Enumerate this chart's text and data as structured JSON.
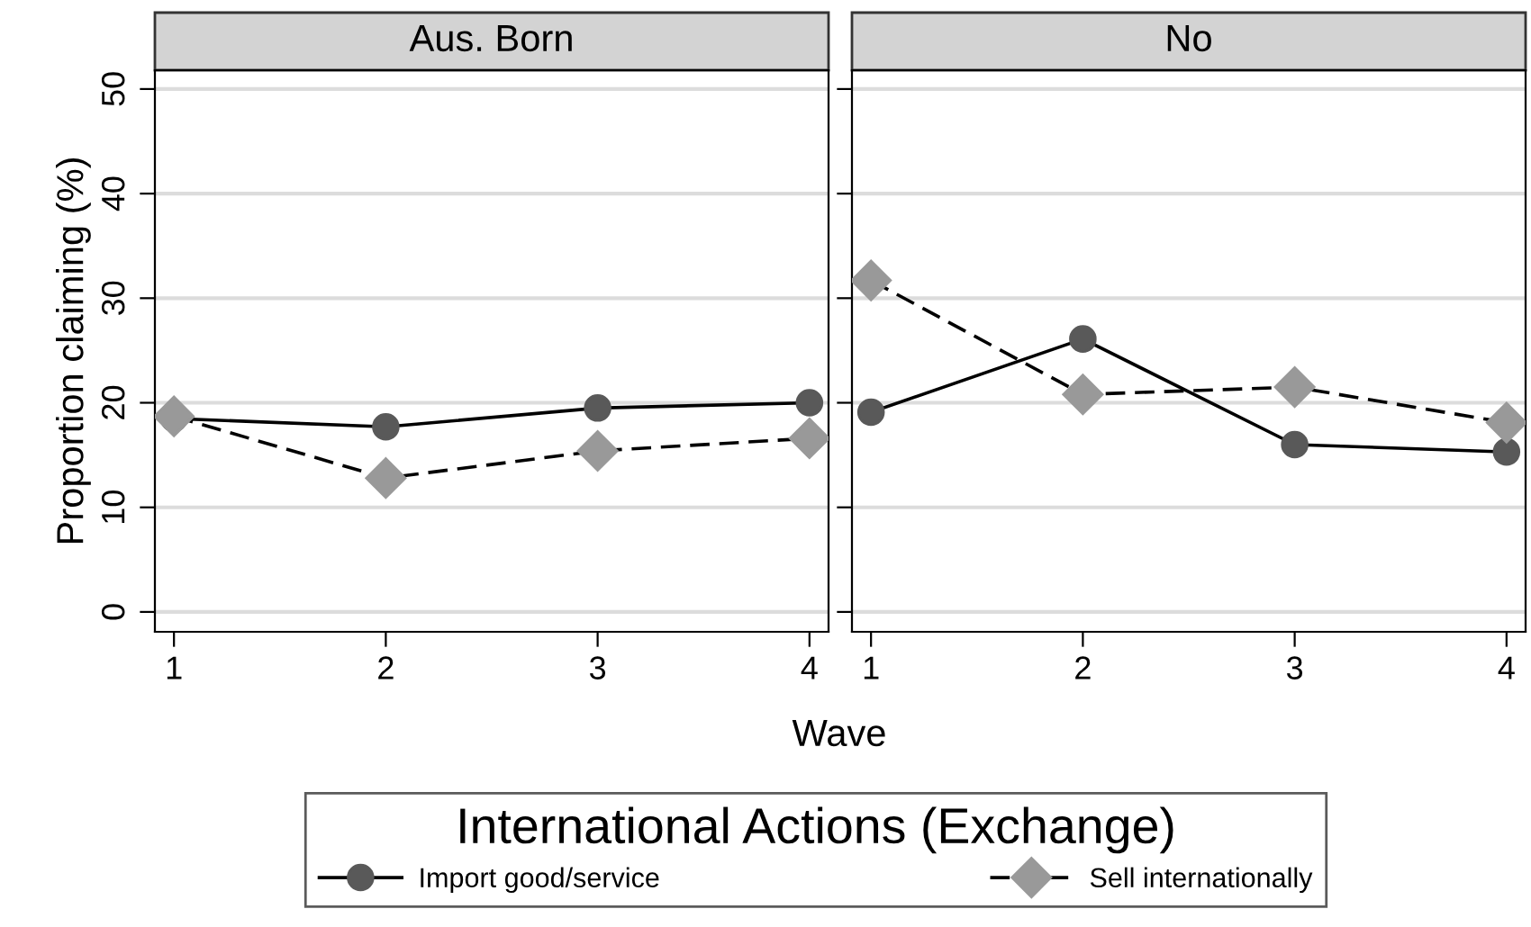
{
  "chart_data": [
    {
      "type": "line",
      "title": "Aus. Born",
      "xlabel": "Wave",
      "ylabel": "Proportion claiming (%)",
      "legend_title": "International Actions (Exchange)",
      "legend": "bottom",
      "grid": "y",
      "x": [
        1,
        2,
        3,
        4
      ],
      "xlim": [
        0.91,
        4.09
      ],
      "xticks": [
        1,
        2,
        3,
        4
      ],
      "ylim": [
        -1.9,
        51.8
      ],
      "yticks": [
        0,
        10,
        20,
        30,
        40,
        50
      ],
      "series": [
        {
          "name": "Import good/service",
          "color": "#595959",
          "marker": "circle",
          "line_style": "solid",
          "values": [
            18.5,
            17.7,
            19.5,
            20.0
          ]
        },
        {
          "name": "Sell internationally",
          "color": "#999999",
          "marker": "diamond",
          "line_style": "dashed",
          "values": [
            18.7,
            12.8,
            15.4,
            16.6
          ]
        }
      ]
    },
    {
      "type": "line",
      "title": "No",
      "grid": "y",
      "tick_labels": "x",
      "x": [
        1,
        2,
        3,
        4
      ],
      "xlim": [
        0.91,
        4.09
      ],
      "xticks": [
        1,
        2,
        3,
        4
      ],
      "ylim": [
        -1.9,
        51.8
      ],
      "yticks": [
        0,
        10,
        20,
        30,
        40,
        50
      ],
      "series": [
        {
          "color": "#595959",
          "marker": "circle",
          "line_style": "solid",
          "values": [
            19.1,
            26.1,
            16.0,
            15.3
          ]
        },
        {
          "color": "#999999",
          "marker": "diamond",
          "line_style": "dashed",
          "values": [
            31.7,
            20.8,
            21.5,
            18.1
          ]
        }
      ]
    }
  ]
}
